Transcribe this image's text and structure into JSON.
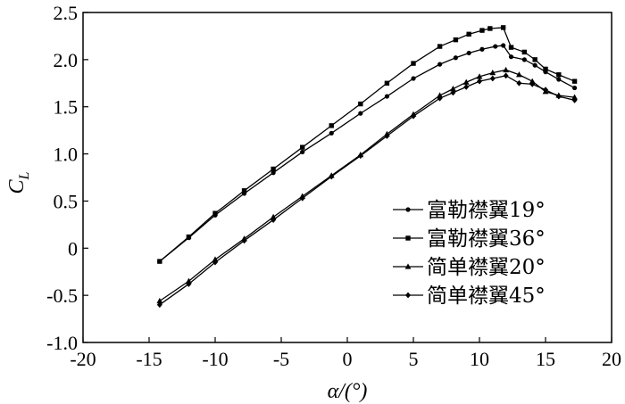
{
  "chart_data": {
    "type": "line",
    "xlabel": "α/(°)",
    "ylabel": "C",
    "ylabel_sub": "L",
    "xlim": [
      -20,
      20
    ],
    "ylim": [
      -1.0,
      2.5
    ],
    "xticks": [
      -20,
      -15,
      -10,
      -5,
      0,
      5,
      10,
      15,
      20
    ],
    "xtick_labels": [
      "-20",
      "-15",
      "-10",
      "-5",
      "0",
      "5",
      "10",
      "15",
      "20"
    ],
    "yticks": [
      -1.0,
      -0.5,
      0,
      0.5,
      1.0,
      1.5,
      2.0,
      2.5
    ],
    "ytick_labels": [
      "-1.0",
      "-0.5",
      "0",
      "0.5",
      "1.0",
      "1.5",
      "2.0",
      "2.5"
    ],
    "grid": false,
    "legend_position": "bottom-right",
    "series": [
      {
        "name": "富勒襟翼19°",
        "marker": "circle",
        "points": [
          [
            -14.2,
            -0.14
          ],
          [
            -12,
            0.11
          ],
          [
            -10,
            0.35
          ],
          [
            -7.8,
            0.58
          ],
          [
            -5.6,
            0.8
          ],
          [
            -3.4,
            1.02
          ],
          [
            -1.2,
            1.22
          ],
          [
            1,
            1.43
          ],
          [
            3,
            1.61
          ],
          [
            5,
            1.8
          ],
          [
            7,
            1.95
          ],
          [
            8.2,
            2.02
          ],
          [
            9.2,
            2.07
          ],
          [
            10.2,
            2.11
          ],
          [
            11.2,
            2.14
          ],
          [
            11.8,
            2.15
          ],
          [
            12.4,
            2.03
          ],
          [
            13.4,
            2.0
          ],
          [
            14.2,
            1.94
          ],
          [
            15,
            1.87
          ],
          [
            16,
            1.79
          ],
          [
            17.2,
            1.7
          ]
        ]
      },
      {
        "name": "富勒襟翼36°",
        "marker": "square",
        "points": [
          [
            -14.2,
            -0.14
          ],
          [
            -12,
            0.12
          ],
          [
            -10,
            0.37
          ],
          [
            -7.8,
            0.61
          ],
          [
            -5.6,
            0.84
          ],
          [
            -3.4,
            1.07
          ],
          [
            -1.2,
            1.3
          ],
          [
            1,
            1.53
          ],
          [
            3,
            1.75
          ],
          [
            5,
            1.96
          ],
          [
            7,
            2.14
          ],
          [
            8.2,
            2.21
          ],
          [
            9.2,
            2.27
          ],
          [
            10.2,
            2.31
          ],
          [
            10.8,
            2.33
          ],
          [
            11.8,
            2.34
          ],
          [
            12.4,
            2.13
          ],
          [
            13.4,
            2.08
          ],
          [
            14.2,
            2.0
          ],
          [
            15,
            1.9
          ],
          [
            16,
            1.84
          ],
          [
            17.2,
            1.77
          ]
        ]
      },
      {
        "name": "简单襟翼20°",
        "marker": "triangle",
        "points": [
          [
            -14.2,
            -0.56
          ],
          [
            -12,
            -0.35
          ],
          [
            -10,
            -0.12
          ],
          [
            -7.8,
            0.1
          ],
          [
            -5.6,
            0.33
          ],
          [
            -3.4,
            0.55
          ],
          [
            -1.2,
            0.77
          ],
          [
            1,
            0.99
          ],
          [
            3,
            1.21
          ],
          [
            5,
            1.42
          ],
          [
            7,
            1.62
          ],
          [
            8,
            1.69
          ],
          [
            9,
            1.76
          ],
          [
            10,
            1.82
          ],
          [
            11,
            1.86
          ],
          [
            12,
            1.89
          ],
          [
            13,
            1.84
          ],
          [
            14,
            1.77
          ],
          [
            15,
            1.66
          ],
          [
            16,
            1.62
          ],
          [
            17.2,
            1.6
          ]
        ]
      },
      {
        "name": "简单襟翼45°",
        "marker": "diamond",
        "points": [
          [
            -14.2,
            -0.6
          ],
          [
            -12,
            -0.38
          ],
          [
            -10,
            -0.15
          ],
          [
            -7.8,
            0.08
          ],
          [
            -5.6,
            0.3
          ],
          [
            -3.4,
            0.53
          ],
          [
            -1.2,
            0.76
          ],
          [
            1,
            0.98
          ],
          [
            3,
            1.19
          ],
          [
            5,
            1.4
          ],
          [
            7,
            1.59
          ],
          [
            8,
            1.65
          ],
          [
            9,
            1.71
          ],
          [
            10,
            1.77
          ],
          [
            11,
            1.8
          ],
          [
            12,
            1.83
          ],
          [
            13,
            1.75
          ],
          [
            14,
            1.74
          ],
          [
            15,
            1.68
          ],
          [
            16,
            1.61
          ],
          [
            17.2,
            1.57
          ]
        ]
      }
    ]
  }
}
